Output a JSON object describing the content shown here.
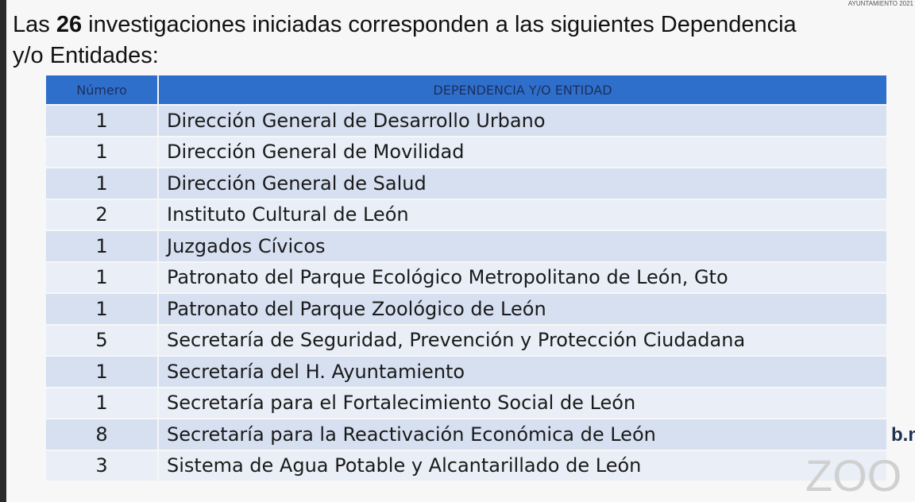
{
  "intro": {
    "prefix": "Las",
    "count": "26",
    "suffix": "investigaciones iniciadas corresponden a las siguientes Dependencia",
    "line2": "y/o Entidades:"
  },
  "logo": "AYUNTAMIENTO 2021",
  "side_text": "b.n",
  "watermark": "ZOO",
  "table": {
    "headers": [
      "Número",
      "DEPENDENCIA Y/O ENTIDAD"
    ],
    "rows": [
      [
        1,
        "Dirección General de Desarrollo Urbano"
      ],
      [
        1,
        "Dirección General de Movilidad"
      ],
      [
        1,
        "Dirección General de Salud"
      ],
      [
        2,
        "Instituto Cultural de León"
      ],
      [
        1,
        "Juzgados Cívicos"
      ],
      [
        1,
        "Patronato del Parque Ecológico Metropolitano de León, Gto"
      ],
      [
        1,
        "Patronato del Parque Zoológico de León"
      ],
      [
        5,
        "Secretaría de Seguridad, Prevención y Protección Ciudadana"
      ],
      [
        1,
        "Secretaría del H. Ayuntamiento"
      ],
      [
        1,
        "Secretaría para el Fortalecimiento Social de León"
      ],
      [
        8,
        "Secretaría para la Reactivación Económica de León"
      ],
      [
        3,
        "Sistema de Agua Potable y Alcantarillado de León"
      ]
    ]
  }
}
